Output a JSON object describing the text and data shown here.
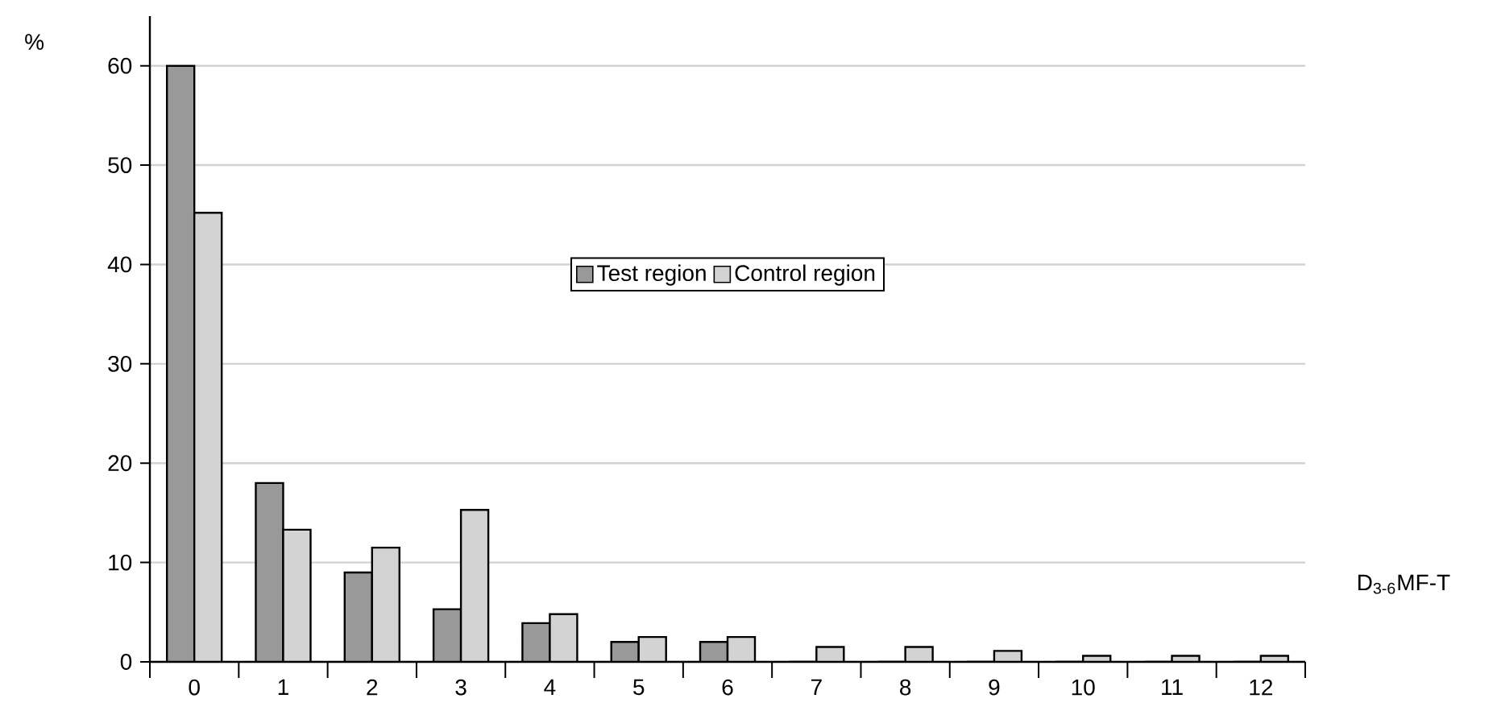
{
  "chart_data": {
    "type": "bar",
    "xlabel": "D$_{3-6}$MF-T",
    "ylabel": "%",
    "categories": [
      "0",
      "1",
      "2",
      "3",
      "4",
      "5",
      "6",
      "7",
      "8",
      "9",
      "10",
      "11",
      "12"
    ],
    "series": [
      {
        "name": "Test region",
        "color": "#999999",
        "values": [
          60,
          18,
          9,
          5.3,
          3.9,
          2,
          2,
          0,
          0,
          0,
          0,
          0,
          0
        ]
      },
      {
        "name": "Control region",
        "color": "#d3d3d3",
        "values": [
          45.2,
          13.3,
          11.5,
          15.3,
          4.8,
          2.5,
          2.5,
          1.5,
          1.5,
          1.1,
          0.6,
          0.6,
          0.6
        ]
      }
    ],
    "ylim": [
      0,
      65
    ],
    "yticks": [
      0,
      10,
      20,
      30,
      40,
      50,
      60
    ],
    "grid": "y",
    "legend": "center"
  }
}
